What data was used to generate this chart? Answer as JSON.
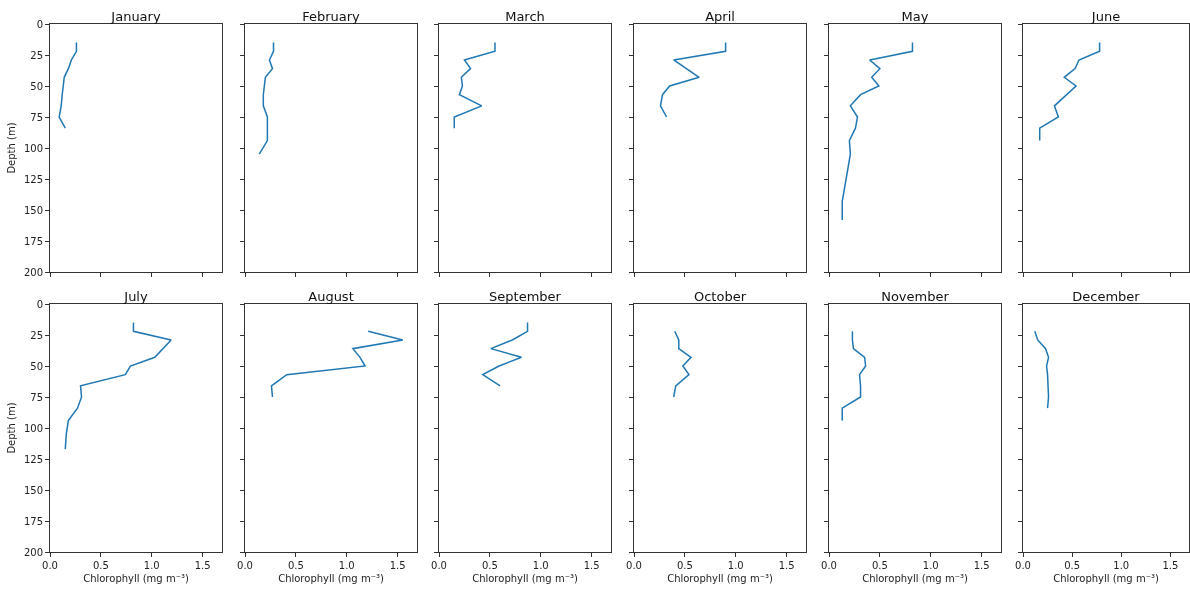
{
  "chart_data": [
    {
      "type": "line",
      "title": "January",
      "ylabel": "Depth (m)",
      "color": "#1f77b4",
      "x": [
        0.26,
        0.26,
        0.21,
        0.18,
        0.14,
        0.13,
        0.12,
        0.11,
        0.09,
        0.15
      ],
      "values": [
        15,
        22,
        29,
        36,
        43,
        50,
        57,
        66,
        75,
        84
      ],
      "xlim": [
        0,
        1.69
      ],
      "xticks": [
        0,
        0.5,
        1,
        1.5
      ],
      "ylim": [
        200,
        0
      ],
      "yticks": [
        0,
        25,
        50,
        75,
        100,
        125,
        150,
        175,
        200
      ],
      "tick_labels": "y",
      "grid": false
    },
    {
      "type": "line",
      "title": "February",
      "color": "#1f77b4",
      "x": [
        0.28,
        0.28,
        0.24,
        0.27,
        0.2,
        0.19,
        0.18,
        0.18,
        0.22,
        0.22,
        0.22,
        0.14
      ],
      "values": [
        15,
        22,
        29,
        36,
        43,
        50,
        57,
        66,
        75,
        84,
        94,
        105
      ],
      "xlim": [
        0,
        1.69
      ],
      "xticks": [
        0,
        0.5,
        1,
        1.5
      ],
      "ylim": [
        200,
        0
      ],
      "yticks": [
        0,
        25,
        50,
        75,
        100,
        125,
        150,
        175,
        200
      ],
      "tick_labels": false,
      "grid": false
    },
    {
      "type": "line",
      "title": "March",
      "color": "#1f77b4",
      "x": [
        0.55,
        0.55,
        0.25,
        0.31,
        0.22,
        0.23,
        0.2,
        0.42,
        0.15,
        0.15
      ],
      "values": [
        15,
        22,
        29,
        36,
        43,
        50,
        57,
        66,
        75,
        84
      ],
      "xlim": [
        0,
        1.69
      ],
      "xticks": [
        0,
        0.5,
        1,
        1.5
      ],
      "ylim": [
        200,
        0
      ],
      "yticks": [
        0,
        25,
        50,
        75,
        100,
        125,
        150,
        175,
        200
      ],
      "tick_labels": false,
      "grid": false
    },
    {
      "type": "line",
      "title": "April",
      "color": "#1f77b4",
      "x": [
        0.9,
        0.9,
        0.39,
        0.64,
        0.35,
        0.28,
        0.26,
        0.32
      ],
      "values": [
        15,
        22,
        29,
        43,
        50,
        57,
        66,
        75
      ],
      "xlim": [
        0,
        1.69
      ],
      "xticks": [
        0,
        0.5,
        1,
        1.5
      ],
      "ylim": [
        200,
        0
      ],
      "yticks": [
        0,
        25,
        50,
        75,
        100,
        125,
        150,
        175,
        200
      ],
      "tick_labels": false,
      "grid": false
    },
    {
      "type": "line",
      "title": "May",
      "color": "#1f77b4",
      "x": [
        0.82,
        0.82,
        0.4,
        0.5,
        0.42,
        0.49,
        0.31,
        0.21,
        0.28,
        0.26,
        0.2,
        0.21,
        0.17,
        0.13,
        0.13
      ],
      "values": [
        15,
        22,
        29,
        36,
        43,
        50,
        57,
        66,
        75,
        84,
        94,
        105,
        124,
        143,
        158
      ],
      "xlim": [
        0,
        1.69
      ],
      "xticks": [
        0,
        0.5,
        1,
        1.5
      ],
      "ylim": [
        200,
        0
      ],
      "yticks": [
        0,
        25,
        50,
        75,
        100,
        125,
        150,
        175,
        200
      ],
      "tick_labels": false,
      "grid": false
    },
    {
      "type": "line",
      "title": "June",
      "color": "#1f77b4",
      "x": [
        0.78,
        0.78,
        0.57,
        0.53,
        0.42,
        0.54,
        0.32,
        0.36,
        0.17,
        0.17
      ],
      "values": [
        15,
        22,
        29,
        36,
        43,
        50,
        66,
        75,
        84,
        94
      ],
      "xlim": [
        0,
        1.69
      ],
      "xticks": [
        0,
        0.5,
        1,
        1.5
      ],
      "ylim": [
        200,
        0
      ],
      "yticks": [
        0,
        25,
        50,
        75,
        100,
        125,
        150,
        175,
        200
      ],
      "tick_labels": false,
      "grid": false
    },
    {
      "type": "line",
      "title": "July",
      "xlabel": "Chlorophyll (mg m⁻³)",
      "ylabel": "Depth (m)",
      "color": "#1f77b4",
      "x": [
        0.82,
        0.82,
        1.19,
        1.03,
        0.79,
        0.74,
        0.3,
        0.31,
        0.27,
        0.18,
        0.16,
        0.15
      ],
      "values": [
        15,
        22,
        29,
        43,
        50,
        57,
        66,
        75,
        84,
        94,
        105,
        117
      ],
      "xlim": [
        0,
        1.69
      ],
      "xticks": [
        {
          "value": 0,
          "label": "0.0"
        },
        {
          "value": 0.5,
          "label": "0.5"
        },
        {
          "value": 1,
          "label": "1.0"
        },
        {
          "value": 1.5,
          "label": "1.5"
        }
      ],
      "ylim": [
        200,
        0
      ],
      "yticks": [
        0,
        25,
        50,
        75,
        100,
        125,
        150,
        175,
        200
      ],
      "grid": false
    },
    {
      "type": "line",
      "title": "August",
      "xlabel": "Chlorophyll (mg m⁻³)",
      "color": "#1f77b4",
      "x": [
        1.21,
        1.55,
        1.06,
        1.13,
        1.18,
        0.41,
        0.26,
        0.27
      ],
      "values": [
        22,
        29,
        36,
        43,
        50,
        57,
        66,
        75
      ],
      "xlim": [
        0,
        1.69
      ],
      "xticks": [
        {
          "value": 0,
          "label": "0.0"
        },
        {
          "value": 0.5,
          "label": "0.5"
        },
        {
          "value": 1,
          "label": "1.0"
        },
        {
          "value": 1.5,
          "label": "1.5"
        }
      ],
      "ylim": [
        200,
        0
      ],
      "yticks": [
        0,
        25,
        50,
        75,
        100,
        125,
        150,
        175,
        200
      ],
      "tick_labels": "x",
      "grid": false
    },
    {
      "type": "line",
      "title": "September",
      "xlabel": "Chlorophyll (mg m⁻³)",
      "color": "#1f77b4",
      "x": [
        0.87,
        0.87,
        0.72,
        0.51,
        0.81,
        0.59,
        0.43,
        0.6
      ],
      "values": [
        15,
        22,
        29,
        36,
        43,
        50,
        57,
        66
      ],
      "xlim": [
        0,
        1.69
      ],
      "xticks": [
        {
          "value": 0,
          "label": "0.0"
        },
        {
          "value": 0.5,
          "label": "0.5"
        },
        {
          "value": 1,
          "label": "1.0"
        },
        {
          "value": 1.5,
          "label": "1.5"
        }
      ],
      "ylim": [
        200,
        0
      ],
      "yticks": [
        0,
        25,
        50,
        75,
        100,
        125,
        150,
        175,
        200
      ],
      "tick_labels": "x",
      "grid": false
    },
    {
      "type": "line",
      "title": "October",
      "xlabel": "Chlorophyll (mg m⁻³)",
      "color": "#1f77b4",
      "x": [
        0.4,
        0.44,
        0.44,
        0.56,
        0.48,
        0.54,
        0.41,
        0.39
      ],
      "values": [
        22,
        29,
        36,
        43,
        50,
        57,
        66,
        75
      ],
      "xlim": [
        0,
        1.69
      ],
      "xticks": [
        {
          "value": 0,
          "label": "0.0"
        },
        {
          "value": 0.5,
          "label": "0.5"
        },
        {
          "value": 1,
          "label": "1.0"
        },
        {
          "value": 1.5,
          "label": "1.5"
        }
      ],
      "ylim": [
        200,
        0
      ],
      "yticks": [
        0,
        25,
        50,
        75,
        100,
        125,
        150,
        175,
        200
      ],
      "tick_labels": "x",
      "grid": false
    },
    {
      "type": "line",
      "title": "November",
      "xlabel": "Chlorophyll (mg m⁻³)",
      "color": "#1f77b4",
      "x": [
        0.23,
        0.23,
        0.24,
        0.35,
        0.36,
        0.3,
        0.31,
        0.31,
        0.13,
        0.13
      ],
      "values": [
        22,
        29,
        36,
        43,
        50,
        57,
        66,
        75,
        84,
        94
      ],
      "xlim": [
        0,
        1.69
      ],
      "xticks": [
        {
          "value": 0,
          "label": "0.0"
        },
        {
          "value": 0.5,
          "label": "0.5"
        },
        {
          "value": 1,
          "label": "1.0"
        },
        {
          "value": 1.5,
          "label": "1.5"
        }
      ],
      "ylim": [
        200,
        0
      ],
      "yticks": [
        0,
        25,
        50,
        75,
        100,
        125,
        150,
        175,
        200
      ],
      "tick_labels": "x",
      "grid": false
    },
    {
      "type": "line",
      "title": "December",
      "xlabel": "Chlorophyll (mg m⁻³)",
      "color": "#1f77b4",
      "x": [
        0.12,
        0.15,
        0.23,
        0.26,
        0.24,
        0.25,
        0.26,
        0.25
      ],
      "values": [
        22,
        29,
        36,
        43,
        50,
        57,
        75,
        84
      ],
      "xlim": [
        0,
        1.69
      ],
      "xticks": [
        {
          "value": 0,
          "label": "0.0"
        },
        {
          "value": 0.5,
          "label": "0.5"
        },
        {
          "value": 1,
          "label": "1.0"
        },
        {
          "value": 1.5,
          "label": "1.5"
        }
      ],
      "ylim": [
        200,
        0
      ],
      "yticks": [
        0,
        25,
        50,
        75,
        100,
        125,
        150,
        175,
        200
      ],
      "tick_labels": "x",
      "grid": false
    }
  ]
}
